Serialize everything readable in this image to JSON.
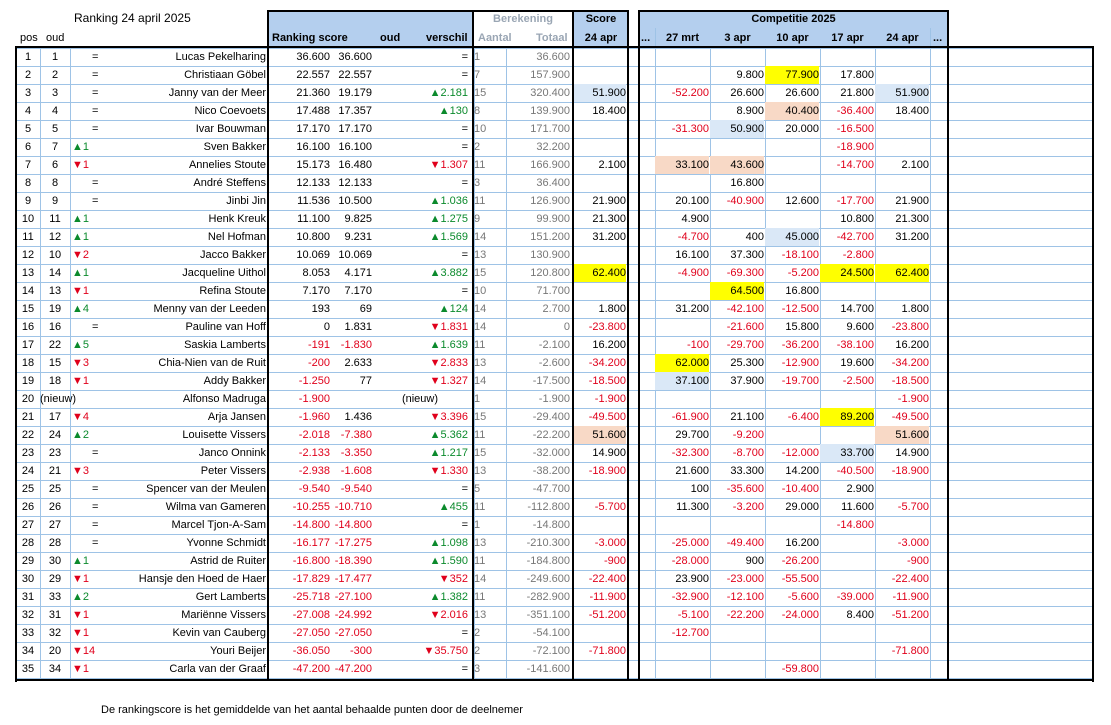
{
  "title": "Ranking   24 april 2025",
  "footer": "De rankingscore is het gemiddelde van het aantal behaalde punten door de deelnemer",
  "headers": {
    "pos": "pos",
    "oud": "oud",
    "ranking_score": "Ranking score",
    "oud2": "oud",
    "verschil": "verschil",
    "berekening": "Berekening",
    "aantal": "Aantal",
    "totaal": "Totaal",
    "score": "Score",
    "score_date": "24 apr",
    "competitie": "Competitie 2025",
    "dots_left": "...",
    "dates": [
      "27 mrt",
      "3 apr",
      "10 apr",
      "17 apr",
      "24 apr"
    ],
    "dots_right": "..."
  },
  "colors": {
    "header_blue": "#b4cfee",
    "grid": "#9ec3e6",
    "red": "#e0001b",
    "green": "#0b8a2c",
    "highlight_yellow": "#ffff00",
    "highlight_blue": "#dae8f7",
    "highlight_peach": "#f8d9c6"
  },
  "rows": [
    {
      "pos": "1",
      "oud": "1",
      "move": "=",
      "dir": "eq",
      "name": "Lucas Pekelharing",
      "score": "36.600",
      "old": "36.600",
      "diff": "=",
      "ddir": "eq",
      "aantal": "1",
      "totaal": "36.600",
      "s24": "",
      "s24hl": "",
      "c": [
        "",
        "",
        "",
        "",
        ""
      ],
      "chl": [
        "",
        "",
        "",
        "",
        ""
      ]
    },
    {
      "pos": "2",
      "oud": "2",
      "move": "=",
      "dir": "eq",
      "name": "Christiaan Göbel",
      "score": "22.557",
      "old": "22.557",
      "diff": "=",
      "ddir": "eq",
      "aantal": "7",
      "totaal": "157.900",
      "s24": "",
      "s24hl": "",
      "c": [
        "",
        "9.800",
        "77.900",
        "17.800",
        ""
      ],
      "chl": [
        "",
        "",
        "yellow",
        "",
        ""
      ]
    },
    {
      "pos": "3",
      "oud": "3",
      "move": "=",
      "dir": "eq",
      "name": "Janny van der Meer",
      "score": "21.360",
      "old": "19.179",
      "diff": "▲2.181",
      "ddir": "up",
      "aantal": "15",
      "totaal": "320.400",
      "s24": "51.900",
      "s24hl": "blue",
      "c": [
        "-52.200",
        "26.600",
        "26.600",
        "21.800",
        "51.900"
      ],
      "chl": [
        "",
        "",
        "",
        "",
        "blue"
      ]
    },
    {
      "pos": "4",
      "oud": "4",
      "move": "=",
      "dir": "eq",
      "name": "Nico Coevoets",
      "score": "17.488",
      "old": "17.357",
      "diff": "▲130",
      "ddir": "up",
      "aantal": "8",
      "totaal": "139.900",
      "s24": "18.400",
      "s24hl": "",
      "c": [
        "",
        "8.900",
        "40.400",
        "-36.400",
        "18.400"
      ],
      "chl": [
        "",
        "",
        "peach",
        "",
        ""
      ]
    },
    {
      "pos": "5",
      "oud": "5",
      "move": "=",
      "dir": "eq",
      "name": "Ivar Bouwman",
      "score": "17.170",
      "old": "17.170",
      "diff": "=",
      "ddir": "eq",
      "aantal": "10",
      "totaal": "171.700",
      "s24": "",
      "s24hl": "",
      "c": [
        "-31.300",
        "50.900",
        "20.000",
        "-16.500",
        ""
      ],
      "chl": [
        "",
        "blue",
        "",
        "",
        ""
      ]
    },
    {
      "pos": "6",
      "oud": "7",
      "move": "▲1",
      "dir": "up",
      "name": "Sven Bakker",
      "score": "16.100",
      "old": "16.100",
      "diff": "=",
      "ddir": "eq",
      "aantal": "2",
      "totaal": "32.200",
      "s24": "",
      "s24hl": "",
      "c": [
        "",
        "",
        "",
        "-18.900",
        ""
      ],
      "chl": [
        "",
        "",
        "",
        "",
        ""
      ]
    },
    {
      "pos": "7",
      "oud": "6",
      "move": "▼1",
      "dir": "down",
      "name": "Annelies Stoute",
      "score": "15.173",
      "old": "16.480",
      "diff": "▼1.307",
      "ddir": "down",
      "aantal": "11",
      "totaal": "166.900",
      "s24": "2.100",
      "s24hl": "",
      "c": [
        "33.100",
        "43.600",
        "",
        "-14.700",
        "2.100"
      ],
      "chl": [
        "peach",
        "peach",
        "",
        "",
        ""
      ]
    },
    {
      "pos": "8",
      "oud": "8",
      "move": "=",
      "dir": "eq",
      "name": "André Steffens",
      "score": "12.133",
      "old": "12.133",
      "diff": "=",
      "ddir": "eq",
      "aantal": "3",
      "totaal": "36.400",
      "s24": "",
      "s24hl": "",
      "c": [
        "",
        "16.800",
        "",
        "",
        ""
      ],
      "chl": [
        "",
        "",
        "",
        "",
        ""
      ]
    },
    {
      "pos": "9",
      "oud": "9",
      "move": "=",
      "dir": "eq",
      "name": "Jinbi Jin",
      "score": "11.536",
      "old": "10.500",
      "diff": "▲1.036",
      "ddir": "up",
      "aantal": "11",
      "totaal": "126.900",
      "s24": "21.900",
      "s24hl": "",
      "c": [
        "20.100",
        "-40.900",
        "12.600",
        "-17.700",
        "21.900"
      ],
      "chl": [
        "",
        "",
        "",
        "",
        ""
      ]
    },
    {
      "pos": "10",
      "oud": "11",
      "move": "▲1",
      "dir": "up",
      "name": "Henk Kreuk",
      "score": "11.100",
      "old": "9.825",
      "diff": "▲1.275",
      "ddir": "up",
      "aantal": "9",
      "totaal": "99.900",
      "s24": "21.300",
      "s24hl": "",
      "c": [
        "4.900",
        "",
        "",
        "10.800",
        "21.300"
      ],
      "chl": [
        "",
        "",
        "",
        "",
        ""
      ]
    },
    {
      "pos": "11",
      "oud": "12",
      "move": "▲1",
      "dir": "up",
      "name": "Nel Hofman",
      "score": "10.800",
      "old": "9.231",
      "diff": "▲1.569",
      "ddir": "up",
      "aantal": "14",
      "totaal": "151.200",
      "s24": "31.200",
      "s24hl": "",
      "c": [
        "-4.700",
        "400",
        "45.000",
        "-42.700",
        "31.200"
      ],
      "chl": [
        "",
        "",
        "blue",
        "",
        ""
      ]
    },
    {
      "pos": "12",
      "oud": "10",
      "move": "▼2",
      "dir": "down",
      "name": "Jacco Bakker",
      "score": "10.069",
      "old": "10.069",
      "diff": "=",
      "ddir": "eq",
      "aantal": "13",
      "totaal": "130.900",
      "s24": "",
      "s24hl": "",
      "c": [
        "16.100",
        "37.300",
        "-18.100",
        "-2.800",
        ""
      ],
      "chl": [
        "",
        "",
        "",
        "",
        ""
      ]
    },
    {
      "pos": "13",
      "oud": "14",
      "move": "▲1",
      "dir": "up",
      "name": "Jacqueline Uithol",
      "score": "8.053",
      "old": "4.171",
      "diff": "▲3.882",
      "ddir": "up",
      "aantal": "15",
      "totaal": "120.800",
      "s24": "62.400",
      "s24hl": "yellow",
      "c": [
        "-4.900",
        "-69.300",
        "-5.200",
        "24.500",
        "62.400"
      ],
      "chl": [
        "",
        "",
        "",
        "yellow",
        "yellow"
      ]
    },
    {
      "pos": "14",
      "oud": "13",
      "move": "▼1",
      "dir": "down",
      "name": "Refina Stoute",
      "score": "7.170",
      "old": "7.170",
      "diff": "=",
      "ddir": "eq",
      "aantal": "10",
      "totaal": "71.700",
      "s24": "",
      "s24hl": "",
      "c": [
        "",
        "64.500",
        "16.800",
        "",
        ""
      ],
      "chl": [
        "",
        "yellow",
        "",
        "",
        ""
      ]
    },
    {
      "pos": "15",
      "oud": "19",
      "move": "▲4",
      "dir": "up",
      "name": "Menny van der Leeden",
      "score": "193",
      "old": "69",
      "diff": "▲124",
      "ddir": "up",
      "aantal": "14",
      "totaal": "2.700",
      "s24": "1.800",
      "s24hl": "",
      "c": [
        "31.200",
        "-42.100",
        "-12.500",
        "14.700",
        "1.800"
      ],
      "chl": [
        "",
        "",
        "",
        "",
        ""
      ]
    },
    {
      "pos": "16",
      "oud": "16",
      "move": "=",
      "dir": "eq",
      "name": "Pauline van Hoff",
      "score": "0",
      "old": "1.831",
      "diff": "▼1.831",
      "ddir": "down",
      "aantal": "14",
      "totaal": "0",
      "s24": "-23.800",
      "s24hl": "",
      "c": [
        "",
        "-21.600",
        "15.800",
        "9.600",
        "-23.800"
      ],
      "chl": [
        "",
        "",
        "",
        "",
        ""
      ]
    },
    {
      "pos": "17",
      "oud": "22",
      "move": "▲5",
      "dir": "up",
      "name": "Saskia Lamberts",
      "score": "-191",
      "old": "-1.830",
      "diff": "▲1.639",
      "ddir": "up",
      "aantal": "11",
      "totaal": "-2.100",
      "s24": "16.200",
      "s24hl": "",
      "c": [
        "-100",
        "-29.700",
        "-36.200",
        "-38.100",
        "16.200"
      ],
      "chl": [
        "",
        "",
        "",
        "",
        ""
      ]
    },
    {
      "pos": "18",
      "oud": "15",
      "move": "▼3",
      "dir": "down",
      "name": "Chia-Nien van de Ruit",
      "score": "-200",
      "old": "2.633",
      "diff": "▼2.833",
      "ddir": "down",
      "aantal": "13",
      "totaal": "-2.600",
      "s24": "-34.200",
      "s24hl": "",
      "c": [
        "62.000",
        "25.300",
        "-12.900",
        "19.600",
        "-34.200"
      ],
      "chl": [
        "yellow",
        "",
        "",
        "",
        ""
      ]
    },
    {
      "pos": "19",
      "oud": "18",
      "move": "▼1",
      "dir": "down",
      "name": "Addy Bakker",
      "score": "-1.250",
      "old": "77",
      "diff": "▼1.327",
      "ddir": "down",
      "aantal": "14",
      "totaal": "-17.500",
      "s24": "-18.500",
      "s24hl": "",
      "c": [
        "37.100",
        "37.900",
        "-19.700",
        "-2.500",
        "-18.500"
      ],
      "chl": [
        "blue",
        "",
        "",
        "",
        ""
      ]
    },
    {
      "pos": "20",
      "oud": "(nieuw)",
      "move": "",
      "dir": "eq",
      "name": "Alfonso Madruga",
      "score": "-1.900",
      "old": "",
      "diff": "(nieuw)",
      "ddir": "eq",
      "aantal": "1",
      "totaal": "-1.900",
      "s24": "-1.900",
      "s24hl": "",
      "c": [
        "",
        "",
        "",
        "",
        "-1.900"
      ],
      "chl": [
        "",
        "",
        "",
        "",
        ""
      ]
    },
    {
      "pos": "21",
      "oud": "17",
      "move": "▼4",
      "dir": "down",
      "name": "Arja Jansen",
      "score": "-1.960",
      "old": "1.436",
      "diff": "▼3.396",
      "ddir": "down",
      "aantal": "15",
      "totaal": "-29.400",
      "s24": "-49.500",
      "s24hl": "",
      "c": [
        "-61.900",
        "21.100",
        "-6.400",
        "89.200",
        "-49.500"
      ],
      "chl": [
        "",
        "",
        "",
        "yellow",
        ""
      ]
    },
    {
      "pos": "22",
      "oud": "24",
      "move": "▲2",
      "dir": "up",
      "name": "Louisette Vissers",
      "score": "-2.018",
      "old": "-7.380",
      "diff": "▲5.362",
      "ddir": "up",
      "aantal": "11",
      "totaal": "-22.200",
      "s24": "51.600",
      "s24hl": "peach",
      "c": [
        "29.700",
        "-9.200",
        "",
        "",
        "51.600"
      ],
      "chl": [
        "",
        "",
        "",
        "",
        "peach"
      ]
    },
    {
      "pos": "23",
      "oud": "23",
      "move": "=",
      "dir": "eq",
      "name": "Janco Onnink",
      "score": "-2.133",
      "old": "-3.350",
      "diff": "▲1.217",
      "ddir": "up",
      "aantal": "15",
      "totaal": "-32.000",
      "s24": "14.900",
      "s24hl": "",
      "c": [
        "-32.300",
        "-8.700",
        "-12.000",
        "33.700",
        "14.900"
      ],
      "chl": [
        "",
        "",
        "",
        "blue",
        ""
      ]
    },
    {
      "pos": "24",
      "oud": "21",
      "move": "▼3",
      "dir": "down",
      "name": "Peter Vissers",
      "score": "-2.938",
      "old": "-1.608",
      "diff": "▼1.330",
      "ddir": "down",
      "aantal": "13",
      "totaal": "-38.200",
      "s24": "-18.900",
      "s24hl": "",
      "c": [
        "21.600",
        "33.300",
        "14.200",
        "-40.500",
        "-18.900"
      ],
      "chl": [
        "",
        "",
        "",
        "",
        ""
      ]
    },
    {
      "pos": "25",
      "oud": "25",
      "move": "=",
      "dir": "eq",
      "name": "Spencer van der Meulen",
      "score": "-9.540",
      "old": "-9.540",
      "diff": "=",
      "ddir": "eq",
      "aantal": "5",
      "totaal": "-47.700",
      "s24": "",
      "s24hl": "",
      "c": [
        "100",
        "-35.600",
        "-10.400",
        "2.900",
        ""
      ],
      "chl": [
        "",
        "",
        "",
        "",
        ""
      ]
    },
    {
      "pos": "26",
      "oud": "26",
      "move": "=",
      "dir": "eq",
      "name": "Wilma van Gameren",
      "score": "-10.255",
      "old": "-10.710",
      "diff": "▲455",
      "ddir": "up",
      "aantal": "11",
      "totaal": "-112.800",
      "s24": "-5.700",
      "s24hl": "",
      "c": [
        "11.300",
        "-3.200",
        "29.000",
        "11.600",
        "-5.700"
      ],
      "chl": [
        "",
        "",
        "",
        "",
        ""
      ]
    },
    {
      "pos": "27",
      "oud": "27",
      "move": "=",
      "dir": "eq",
      "name": "Marcel Tjon-A-Sam",
      "score": "-14.800",
      "old": "-14.800",
      "diff": "=",
      "ddir": "eq",
      "aantal": "1",
      "totaal": "-14.800",
      "s24": "",
      "s24hl": "",
      "c": [
        "",
        "",
        "",
        "-14.800",
        ""
      ],
      "chl": [
        "",
        "",
        "",
        "",
        ""
      ]
    },
    {
      "pos": "28",
      "oud": "28",
      "move": "=",
      "dir": "eq",
      "name": "Yvonne Schmidt",
      "score": "-16.177",
      "old": "-17.275",
      "diff": "▲1.098",
      "ddir": "up",
      "aantal": "13",
      "totaal": "-210.300",
      "s24": "-3.000",
      "s24hl": "",
      "c": [
        "-25.000",
        "-49.400",
        "16.200",
        "",
        "-3.000"
      ],
      "chl": [
        "",
        "",
        "",
        "",
        ""
      ]
    },
    {
      "pos": "29",
      "oud": "30",
      "move": "▲1",
      "dir": "up",
      "name": "Astrid de Ruiter",
      "score": "-16.800",
      "old": "-18.390",
      "diff": "▲1.590",
      "ddir": "up",
      "aantal": "11",
      "totaal": "-184.800",
      "s24": "-900",
      "s24hl": "",
      "c": [
        "-28.000",
        "900",
        "-26.200",
        "",
        "-900"
      ],
      "chl": [
        "",
        "",
        "",
        "",
        ""
      ]
    },
    {
      "pos": "30",
      "oud": "29",
      "move": "▼1",
      "dir": "down",
      "name": "Hansje den Hoed de Haer",
      "score": "-17.829",
      "old": "-17.477",
      "diff": "▼352",
      "ddir": "down",
      "aantal": "14",
      "totaal": "-249.600",
      "s24": "-22.400",
      "s24hl": "",
      "c": [
        "23.900",
        "-23.000",
        "-55.500",
        "",
        "-22.400"
      ],
      "chl": [
        "",
        "",
        "",
        "",
        ""
      ]
    },
    {
      "pos": "31",
      "oud": "33",
      "move": "▲2",
      "dir": "up",
      "name": "Gert Lamberts",
      "score": "-25.718",
      "old": "-27.100",
      "diff": "▲1.382",
      "ddir": "up",
      "aantal": "11",
      "totaal": "-282.900",
      "s24": "-11.900",
      "s24hl": "",
      "c": [
        "-32.900",
        "-12.100",
        "-5.600",
        "-39.000",
        "-11.900"
      ],
      "chl": [
        "",
        "",
        "",
        "",
        ""
      ]
    },
    {
      "pos": "32",
      "oud": "31",
      "move": "▼1",
      "dir": "down",
      "name": "Mariënne Vissers",
      "score": "-27.008",
      "old": "-24.992",
      "diff": "▼2.016",
      "ddir": "down",
      "aantal": "13",
      "totaal": "-351.100",
      "s24": "-51.200",
      "s24hl": "",
      "c": [
        "-5.100",
        "-22.200",
        "-24.000",
        "8.400",
        "-51.200"
      ],
      "chl": [
        "",
        "",
        "",
        "",
        ""
      ]
    },
    {
      "pos": "33",
      "oud": "32",
      "move": "▼1",
      "dir": "down",
      "name": "Kevin van Cauberg",
      "score": "-27.050",
      "old": "-27.050",
      "diff": "=",
      "ddir": "eq",
      "aantal": "2",
      "totaal": "-54.100",
      "s24": "",
      "s24hl": "",
      "c": [
        "-12.700",
        "",
        "",
        "",
        ""
      ],
      "chl": [
        "",
        "",
        "",
        "",
        ""
      ]
    },
    {
      "pos": "34",
      "oud": "20",
      "move": "▼14",
      "dir": "down",
      "name": "Youri Beijer",
      "score": "-36.050",
      "old": "-300",
      "diff": "▼35.750",
      "ddir": "down",
      "aantal": "2",
      "totaal": "-72.100",
      "s24": "-71.800",
      "s24hl": "",
      "c": [
        "",
        "",
        "",
        "",
        "-71.800"
      ],
      "chl": [
        "",
        "",
        "",
        "",
        ""
      ]
    },
    {
      "pos": "35",
      "oud": "34",
      "move": "▼1",
      "dir": "down",
      "name": "Carla van der Graaf",
      "score": "-47.200",
      "old": "-47.200",
      "diff": "=",
      "ddir": "eq",
      "aantal": "3",
      "totaal": "-141.600",
      "s24": "",
      "s24hl": "",
      "c": [
        "",
        "",
        "-59.800",
        "",
        ""
      ],
      "chl": [
        "",
        "",
        "",
        "",
        ""
      ]
    }
  ]
}
